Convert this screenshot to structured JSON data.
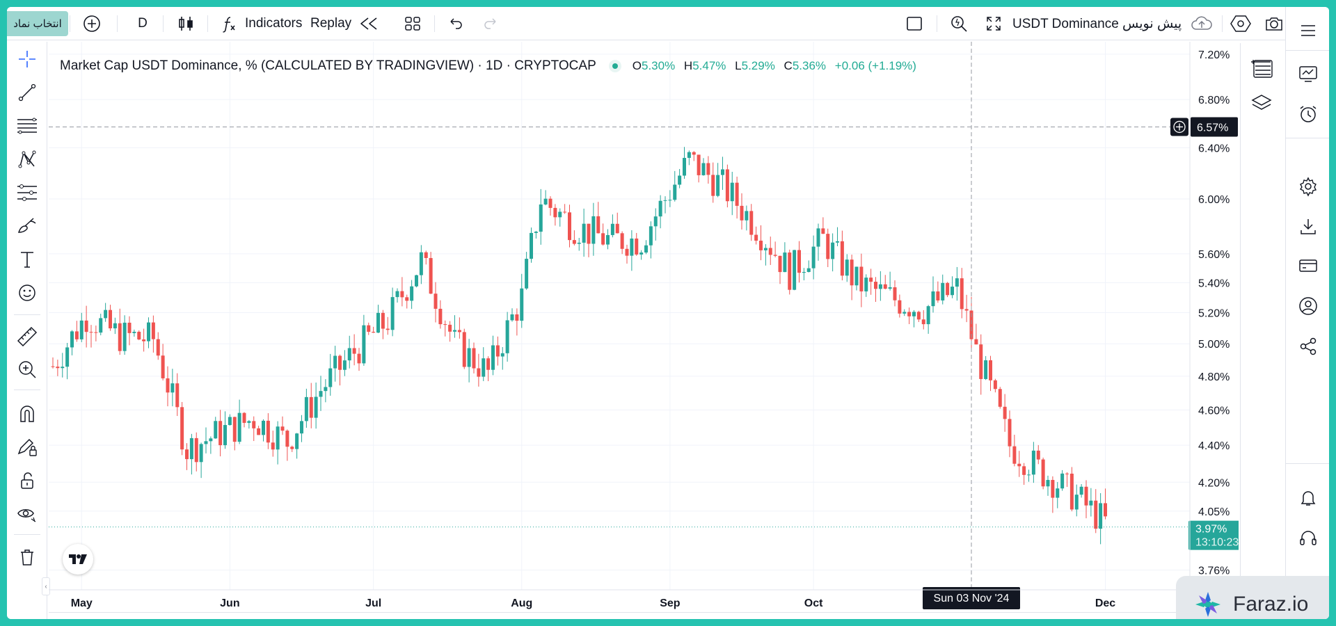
{
  "toolbar": {
    "symbol_tab": "انتخاب نماد",
    "interval": "D",
    "indicators_label": "Indicators",
    "replay_label": "Replay",
    "symbol_name": "USDT Dominance پیش نویس"
  },
  "legend": {
    "title": "Market Cap USDT Dominance, % (CALCULATED BY TRADINGVIEW) · 1D · CRYPTOCAP",
    "o_label": "O",
    "o_value": "5.30%",
    "h_label": "H",
    "h_value": "5.47%",
    "l_label": "L",
    "l_value": "5.29%",
    "c_label": "C",
    "c_value": "5.36%",
    "change": "+0.06 (+1.19%)"
  },
  "crosshair": {
    "price_label": "6.57%",
    "date_label": "Sun 03 Nov '24"
  },
  "last_price": {
    "value": "3.97%",
    "countdown": "13:10:23"
  },
  "price_axis_labels": [
    "7.20%",
    "6.80%",
    "6.40%",
    "6.00%",
    "5.60%",
    "5.40%",
    "5.20%",
    "5.00%",
    "4.80%",
    "4.60%",
    "4.40%",
    "4.20%",
    "4.05%",
    "3.76%"
  ],
  "time_axis_labels": [
    "May",
    "Jun",
    "Jul",
    "Aug",
    "Sep",
    "Oct",
    "Dec"
  ],
  "watermark": "Faraz.io",
  "colors": {
    "up": "#26a69a",
    "down": "#ef5350",
    "accent": "#2962ff",
    "teal_frame": "#25c3b0"
  },
  "chart_data": {
    "type": "candlestick",
    "x_start": "2024-04-25",
    "x_end": "2024-12-05",
    "ylim": [
      3.7,
      7.25
    ],
    "y_scale": "log",
    "series": [
      {
        "x": [
          "2024-04-25",
          "2024-05-02",
          "2024-05-09",
          "2024-05-16",
          "2024-05-23",
          "2024-05-30",
          "2024-06-06",
          "2024-06-13",
          "2024-06-20",
          "2024-06-27",
          "2024-07-04",
          "2024-07-11",
          "2024-07-18",
          "2024-07-25",
          "2024-08-01",
          "2024-08-05",
          "2024-08-12",
          "2024-08-19",
          "2024-08-26",
          "2024-09-05",
          "2024-09-12",
          "2024-09-19",
          "2024-09-26",
          "2024-10-03",
          "2024-10-10",
          "2024-10-17",
          "2024-10-24",
          "2024-10-31",
          "2024-11-04",
          "2024-11-11",
          "2024-11-18",
          "2024-11-25",
          "2024-12-02"
        ],
        "values": [
          4.86,
          5.18,
          5.05,
          5.03,
          4.38,
          4.47,
          4.55,
          4.42,
          4.72,
          4.95,
          5.15,
          5.55,
          5.0,
          4.82,
          5.3,
          6.0,
          5.8,
          5.7,
          5.7,
          6.3,
          6.1,
          5.8,
          5.47,
          5.7,
          5.4,
          5.3,
          5.22,
          5.36,
          4.95,
          4.4,
          4.25,
          4.12,
          3.97
        ]
      }
    ]
  }
}
